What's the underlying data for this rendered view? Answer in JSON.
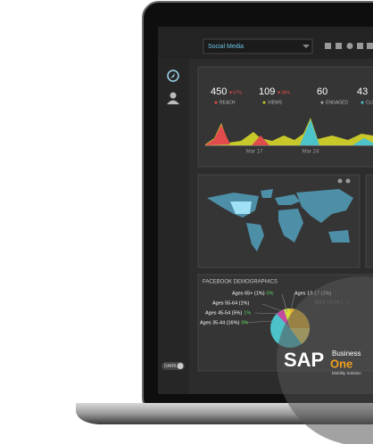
{
  "toolbar": {
    "dropdown": "Social Media"
  },
  "stats": [
    {
      "value": "450",
      "change": "▼67%",
      "label": "REACH"
    },
    {
      "value": "109",
      "change": "▼38%",
      "label": "VIEWS"
    },
    {
      "value": "60",
      "label": "ENGAGED"
    },
    {
      "value": "43",
      "label": "CLIC"
    }
  ],
  "dates": [
    "Mar 17",
    "Mar 24"
  ],
  "demographics": {
    "title": "FACEBOOK DEMOGRAPHICS",
    "items": [
      {
        "label": "Ages 65+ (1%)",
        "change": "0%"
      },
      {
        "label": "Ages 13-17 (1%)"
      },
      {
        "label": "Ages 55-64 (1%)"
      },
      {
        "label": "Ages 45-54 (5%)",
        "change": "1%"
      },
      {
        "label": "Ages 35-44 (16%)",
        "change": "0%"
      },
      {
        "label": "Ages 18-24 (…)"
      }
    ]
  },
  "sidebar": {
    "toggle": "DARK"
  },
  "logo": {
    "brand": "SAP",
    "line1": "Business",
    "line2": "One",
    "tagline": "Mobility Solution"
  }
}
